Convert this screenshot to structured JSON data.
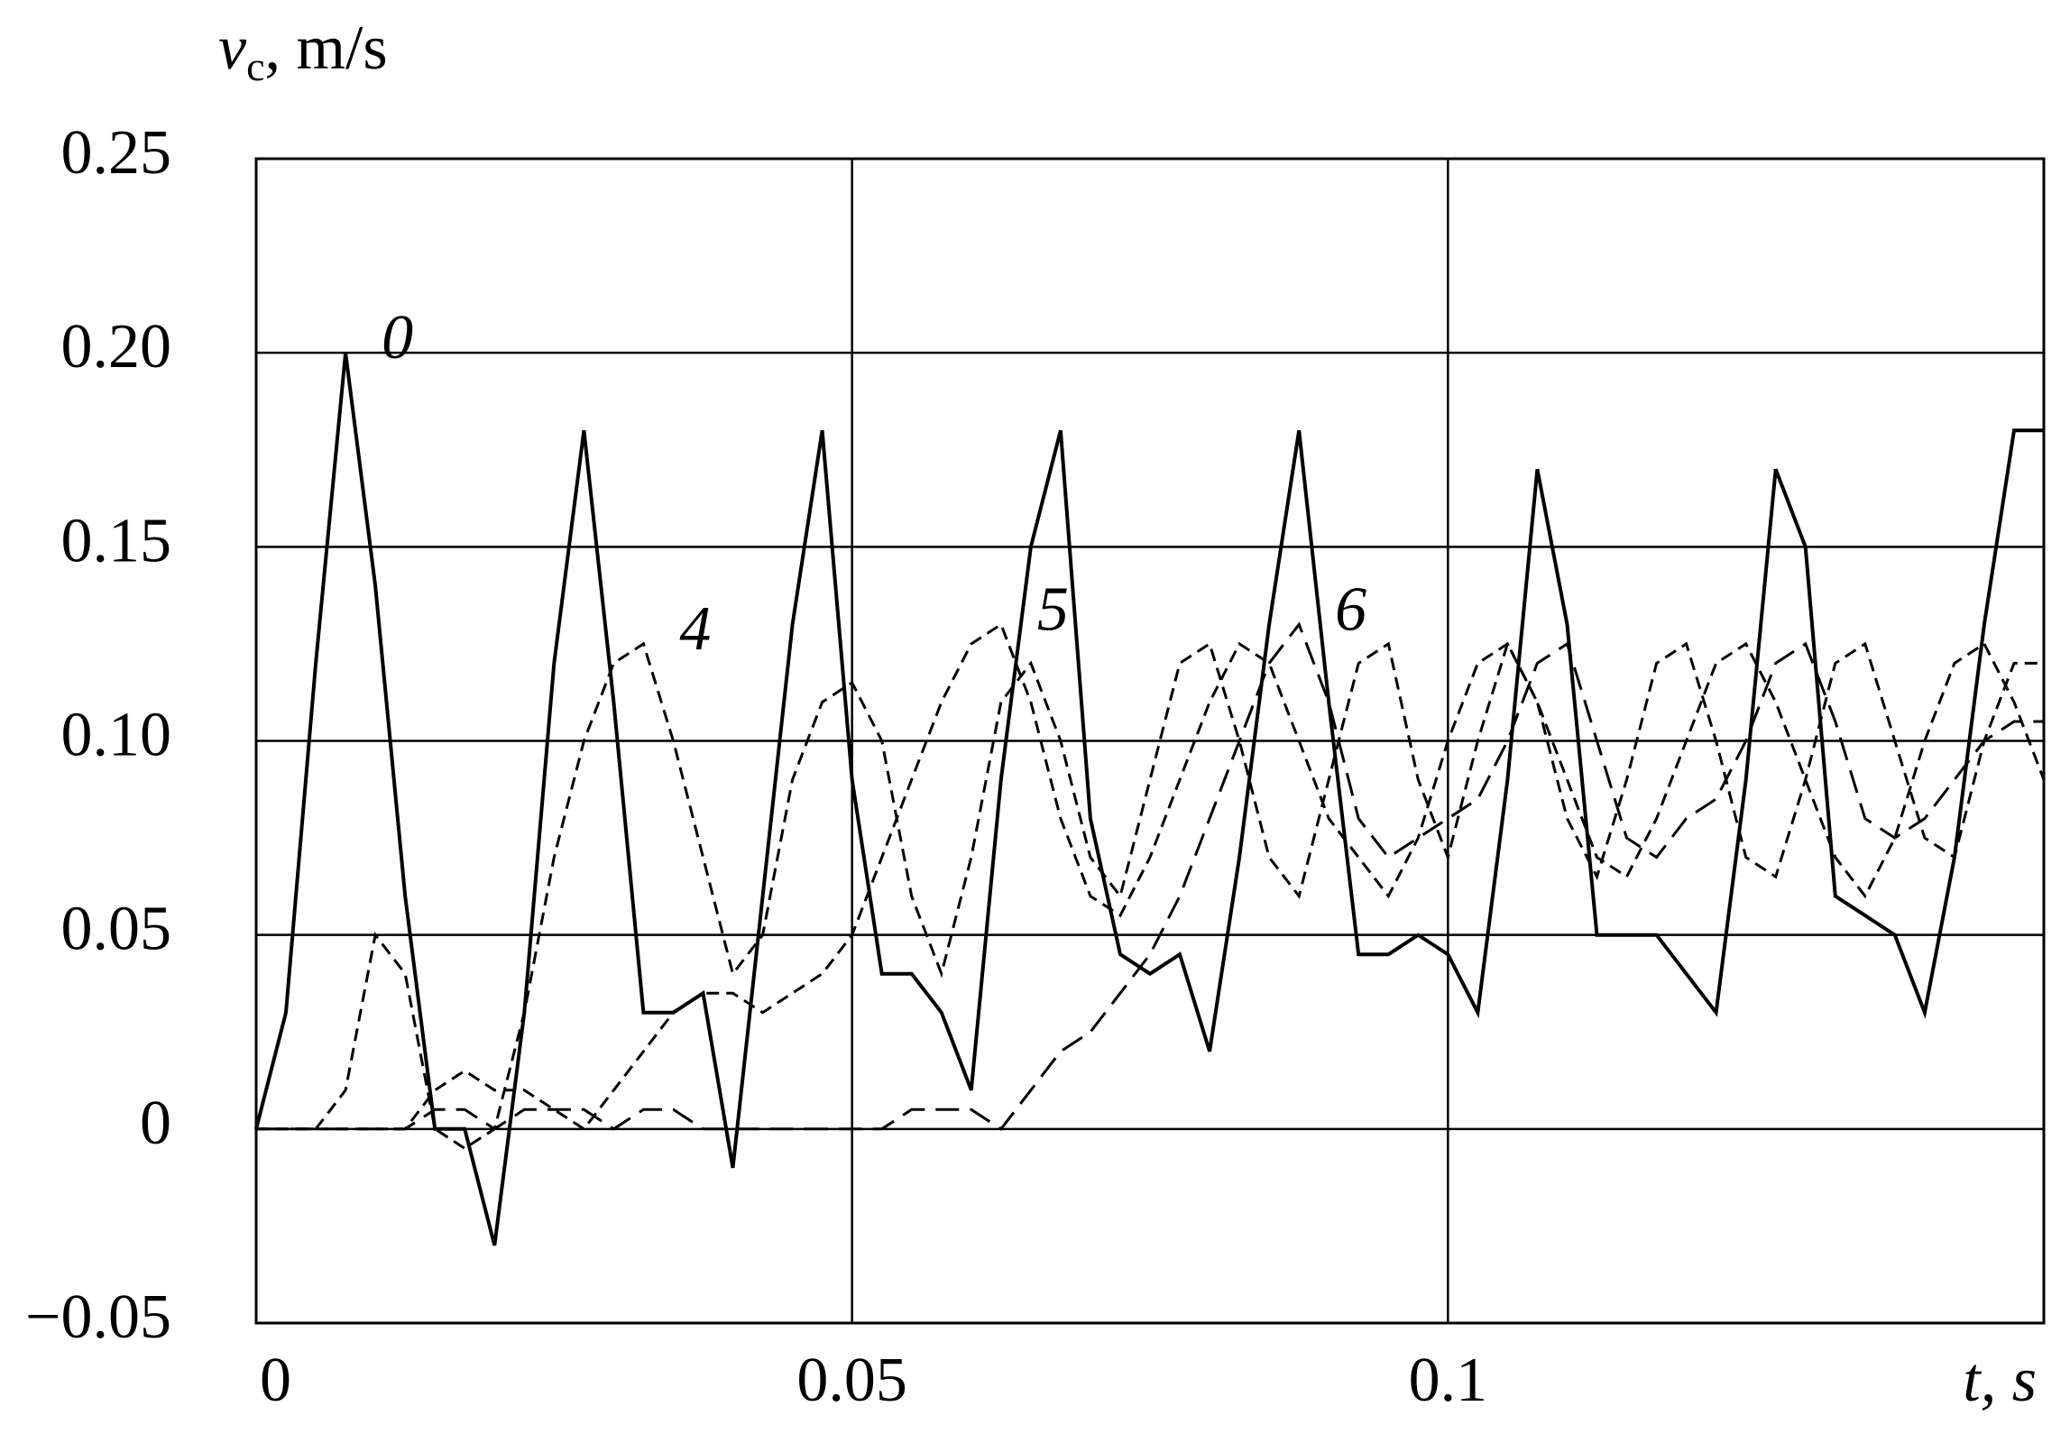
{
  "chart_data": {
    "type": "line",
    "ylabel": {
      "symbol": "v",
      "subscript": "c",
      "unit": ", m/s"
    },
    "xlabel": "t, s",
    "x": [
      0,
      0.0025,
      0.005,
      0.0075,
      0.01,
      0.0125,
      0.015,
      0.0175,
      0.02,
      0.0225,
      0.025,
      0.0275,
      0.03,
      0.0325,
      0.035,
      0.0375,
      0.04,
      0.0425,
      0.045,
      0.0475,
      0.05,
      0.0525,
      0.055,
      0.0575,
      0.06,
      0.0625,
      0.065,
      0.0675,
      0.07,
      0.0725,
      0.075,
      0.0775,
      0.08,
      0.0825,
      0.085,
      0.0875,
      0.09,
      0.0925,
      0.095,
      0.0975,
      0.1,
      0.1025,
      0.105,
      0.1075,
      0.11,
      0.1125,
      0.115,
      0.1175,
      0.12,
      0.1225,
      0.125,
      0.1275,
      0.13,
      0.1325,
      0.135,
      0.1375,
      0.14,
      0.1425,
      0.145,
      0.1475,
      0.15
    ],
    "series": [
      {
        "name": "0",
        "color": "#000000",
        "dash": "solid",
        "values": [
          0,
          0.03,
          0.12,
          0.2,
          0.14,
          0.06,
          0.0,
          0.0,
          -0.03,
          0.03,
          0.12,
          0.18,
          0.11,
          0.03,
          0.03,
          0.035,
          -0.01,
          0.06,
          0.13,
          0.18,
          0.09,
          0.04,
          0.04,
          0.03,
          0.01,
          0.09,
          0.15,
          0.18,
          0.08,
          0.045,
          0.04,
          0.045,
          0.02,
          0.07,
          0.13,
          0.18,
          0.11,
          0.045,
          0.045,
          0.05,
          0.045,
          0.03,
          0.09,
          0.17,
          0.13,
          0.05,
          0.05,
          0.05,
          0.04,
          0.03,
          0.09,
          0.17,
          0.15,
          0.06,
          0.055,
          0.05,
          0.03,
          0.07,
          0.13,
          0.18,
          0.18
        ]
      },
      {
        "name": "4",
        "color": "#000000",
        "dash": "dashed",
        "values": [
          0,
          0,
          0,
          0.01,
          0.05,
          0.04,
          0.0,
          -0.005,
          0.0,
          0.03,
          0.07,
          0.1,
          0.12,
          0.125,
          0.1,
          0.07,
          0.04,
          0.05,
          0.09,
          0.11,
          0.115,
          0.1,
          0.06,
          0.04,
          0.07,
          0.11,
          0.12,
          0.1,
          0.07,
          0.06,
          0.09,
          0.12,
          0.125,
          0.1,
          0.07,
          0.06,
          0.09,
          0.12,
          0.125,
          0.09,
          0.07,
          0.1,
          0.125,
          0.11,
          0.08,
          0.065,
          0.09,
          0.12,
          0.125,
          0.1,
          0.07,
          0.065,
          0.09,
          0.12,
          0.125,
          0.1,
          0.075,
          0.07,
          0.1,
          0.12,
          0.12
        ]
      },
      {
        "name": "5",
        "color": "#000000",
        "dash": "dashed",
        "values": [
          0,
          0,
          0,
          0,
          0,
          0,
          0.01,
          0.015,
          0.01,
          0.01,
          0.005,
          0.0,
          0.01,
          0.02,
          0.03,
          0.035,
          0.035,
          0.03,
          0.035,
          0.04,
          0.05,
          0.07,
          0.09,
          0.11,
          0.125,
          0.13,
          0.11,
          0.08,
          0.06,
          0.055,
          0.07,
          0.09,
          0.11,
          0.125,
          0.12,
          0.1,
          0.08,
          0.07,
          0.06,
          0.075,
          0.1,
          0.12,
          0.125,
          0.11,
          0.09,
          0.07,
          0.065,
          0.08,
          0.1,
          0.12,
          0.125,
          0.11,
          0.09,
          0.07,
          0.06,
          0.075,
          0.1,
          0.12,
          0.125,
          0.11,
          0.09
        ]
      },
      {
        "name": "6",
        "color": "#000000",
        "dash": "longdash",
        "values": [
          0,
          0,
          0,
          0,
          0,
          0,
          0.005,
          0.005,
          0.0,
          0.005,
          0.005,
          0.005,
          0.0,
          0.005,
          0.005,
          0.0,
          0.0,
          0.0,
          0.0,
          0.0,
          0.0,
          0.0,
          0.005,
          0.005,
          0.005,
          0.0,
          0.01,
          0.02,
          0.025,
          0.035,
          0.045,
          0.06,
          0.08,
          0.1,
          0.12,
          0.13,
          0.11,
          0.08,
          0.07,
          0.075,
          0.08,
          0.085,
          0.1,
          0.12,
          0.125,
          0.1,
          0.075,
          0.07,
          0.08,
          0.085,
          0.1,
          0.12,
          0.125,
          0.105,
          0.08,
          0.075,
          0.08,
          0.09,
          0.1,
          0.105,
          0.105
        ]
      }
    ],
    "xlim": [
      0,
      0.15
    ],
    "xticks": [
      0,
      0.05,
      0.1
    ],
    "ylim": [
      -0.05,
      0.25
    ],
    "yticks": [
      {
        "value": -0.05,
        "label": "−0.05"
      },
      0,
      0.05,
      {
        "value": 0.1,
        "label": "0.10"
      },
      0.15,
      {
        "value": 0.2,
        "label": "0.20"
      },
      0.25
    ],
    "grid": true
  }
}
